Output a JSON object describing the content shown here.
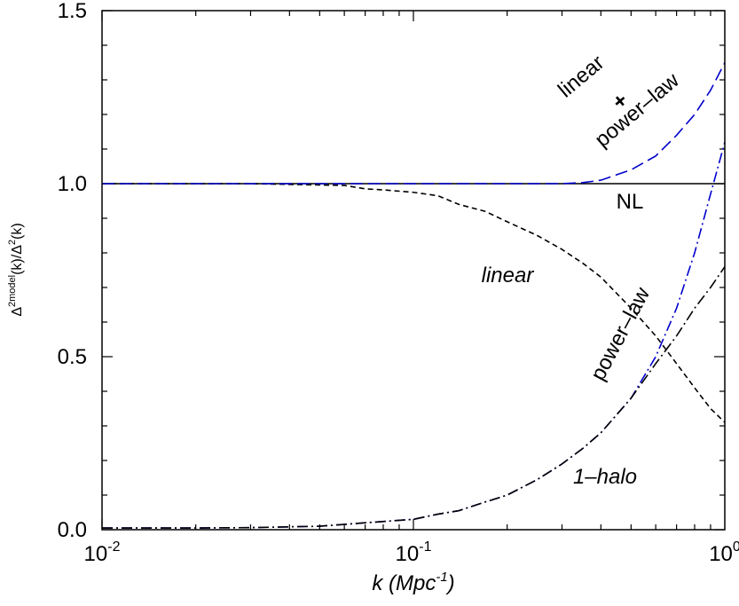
{
  "chart_data": {
    "type": "line",
    "xlabel": "k (Mpc",
    "xlabel_sup": "-1",
    "xlabel_close": ")",
    "ylabel": {
      "base1": "Δ",
      "sup1": "2model",
      "mid": "(k)/Δ",
      "sup2": "2",
      "end": "(k)"
    },
    "x_scale": "log",
    "xlim": [
      0.01,
      1
    ],
    "ylim": [
      0.0,
      1.5
    ],
    "x_ticks": [
      {
        "value": 0.01,
        "base": "10",
        "exp": "-2"
      },
      {
        "value": 0.1,
        "base": "10",
        "exp": "-1"
      },
      {
        "value": 1,
        "base": "10",
        "exp": "0"
      }
    ],
    "y_ticks": [
      {
        "value": 0.0,
        "label": "0.0"
      },
      {
        "value": 0.5,
        "label": "0.5"
      },
      {
        "value": 1.0,
        "label": "1.0"
      },
      {
        "value": 1.5,
        "label": "1.5"
      }
    ],
    "grid": false,
    "legend": "none",
    "series": [
      {
        "name": "NL",
        "color": "#000000",
        "dash": "solid",
        "points": [
          [
            0.01,
            1.0
          ],
          [
            1.0,
            1.0
          ]
        ]
      },
      {
        "name": "linear",
        "color": "#000000",
        "dash": "short-dash",
        "points": [
          [
            0.01,
            1.0
          ],
          [
            0.02,
            1.0
          ],
          [
            0.03,
            1.0
          ],
          [
            0.045,
            0.997
          ],
          [
            0.06,
            0.995
          ],
          [
            0.07,
            0.985
          ],
          [
            0.08,
            0.982
          ],
          [
            0.1,
            0.975
          ],
          [
            0.12,
            0.965
          ],
          [
            0.14,
            0.94
          ],
          [
            0.17,
            0.92
          ],
          [
            0.2,
            0.89
          ],
          [
            0.25,
            0.85
          ],
          [
            0.3,
            0.81
          ],
          [
            0.35,
            0.77
          ],
          [
            0.4,
            0.73
          ],
          [
            0.5,
            0.64
          ],
          [
            0.6,
            0.56
          ],
          [
            0.7,
            0.48
          ],
          [
            0.8,
            0.41
          ],
          [
            0.9,
            0.35
          ],
          [
            1.0,
            0.31
          ]
        ]
      },
      {
        "name": "linear + power-law",
        "color": "#0000cc",
        "dash": "long-dash",
        "points": [
          [
            0.01,
            1.0
          ],
          [
            0.1,
            1.0
          ],
          [
            0.3,
            1.0
          ],
          [
            0.35,
            1.003
          ],
          [
            0.4,
            1.01
          ],
          [
            0.5,
            1.04
          ],
          [
            0.6,
            1.08
          ],
          [
            0.7,
            1.14
          ],
          [
            0.8,
            1.2
          ],
          [
            0.9,
            1.27
          ],
          [
            1.0,
            1.35
          ]
        ]
      },
      {
        "name": "power-law",
        "color": "#0000cc",
        "dash": "dash-dot",
        "points": [
          [
            0.01,
            0.005
          ],
          [
            0.02,
            0.005
          ],
          [
            0.03,
            0.006
          ],
          [
            0.05,
            0.01
          ],
          [
            0.07,
            0.02
          ],
          [
            0.1,
            0.03
          ],
          [
            0.12,
            0.045
          ],
          [
            0.14,
            0.055
          ],
          [
            0.17,
            0.08
          ],
          [
            0.2,
            0.1
          ],
          [
            0.25,
            0.145
          ],
          [
            0.3,
            0.19
          ],
          [
            0.35,
            0.235
          ],
          [
            0.4,
            0.28
          ],
          [
            0.5,
            0.38
          ],
          [
            0.6,
            0.5
          ],
          [
            0.7,
            0.64
          ],
          [
            0.8,
            0.8
          ],
          [
            0.9,
            0.97
          ],
          [
            1.0,
            1.12
          ]
        ]
      },
      {
        "name": "1-halo",
        "color": "#000000",
        "dash": "dash-dot",
        "points": [
          [
            0.01,
            0.005
          ],
          [
            0.02,
            0.005
          ],
          [
            0.03,
            0.006
          ],
          [
            0.05,
            0.01
          ],
          [
            0.07,
            0.02
          ],
          [
            0.1,
            0.03
          ],
          [
            0.12,
            0.045
          ],
          [
            0.14,
            0.055
          ],
          [
            0.17,
            0.08
          ],
          [
            0.2,
            0.1
          ],
          [
            0.25,
            0.145
          ],
          [
            0.3,
            0.19
          ],
          [
            0.35,
            0.235
          ],
          [
            0.4,
            0.28
          ],
          [
            0.5,
            0.38
          ],
          [
            0.6,
            0.48
          ],
          [
            0.7,
            0.56
          ],
          [
            0.8,
            0.64
          ],
          [
            0.9,
            0.7
          ],
          [
            1.0,
            0.76
          ]
        ]
      }
    ],
    "annotations": [
      {
        "key": "lin_top",
        "text": "linear",
        "style": "normal"
      },
      {
        "key": "plus",
        "text": "+",
        "style": "normal"
      },
      {
        "key": "pl_top",
        "text": "power–law",
        "style": "normal"
      },
      {
        "key": "nl",
        "text": "NL",
        "style": "normal"
      },
      {
        "key": "linear",
        "text": "linear",
        "style": "italic"
      },
      {
        "key": "pl_mid",
        "text": "power–law",
        "style": "normal"
      },
      {
        "key": "onehalo",
        "text": "1–halo",
        "style": "italic"
      }
    ]
  }
}
